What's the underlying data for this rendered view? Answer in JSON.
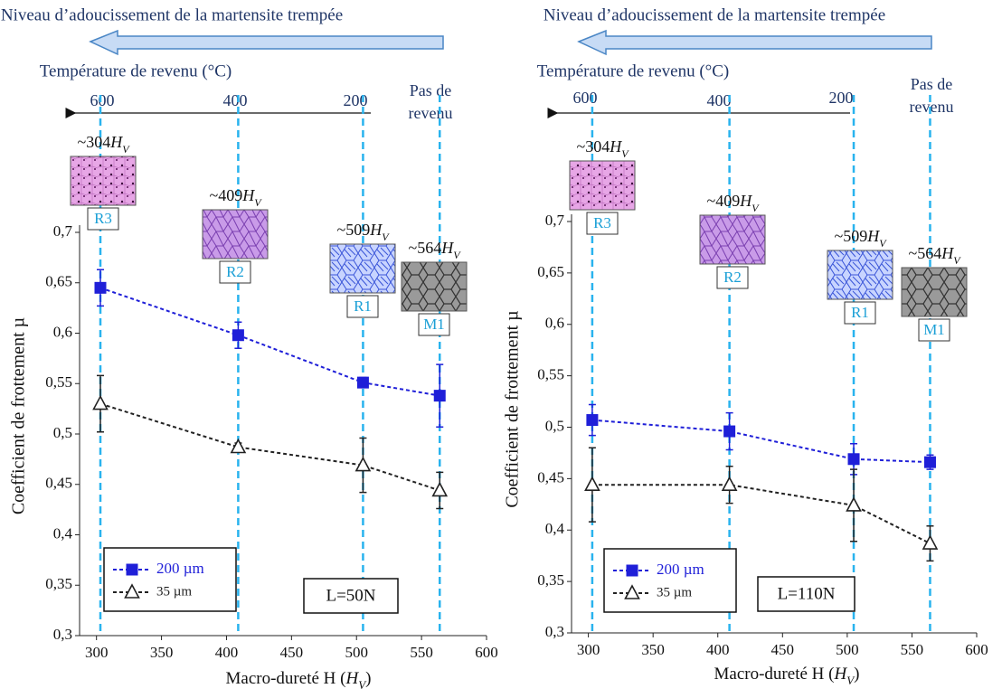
{
  "chart_data": [
    {
      "type": "line",
      "title": "Niveau d’adoucissement de la martensite trempée",
      "temperature_title": "Température de revenu (°C)",
      "temperature_labels": [
        "600",
        "400",
        "200"
      ],
      "no_tempering_label": [
        "Pas de",
        "revenu"
      ],
      "hardness_labels": [
        "~304",
        "~409",
        "~509",
        "~564"
      ],
      "hardness_symbol": "H",
      "hardness_sub": "V",
      "microstructure_labels": [
        "R3",
        "R2",
        "R1",
        "M1"
      ],
      "x_label": "Macro-dureté H (",
      "x_label_symbol": "H",
      "x_label_sub": "V",
      "x_label_close": ")",
      "y_label": "Coefficient de frottement µ",
      "load_label": "L=50N",
      "x": [
        303,
        409,
        505,
        564
      ],
      "series": [
        {
          "name": "200 µm",
          "color": "#1f1fd8",
          "marker": "square",
          "values": [
            0.645,
            0.598,
            0.551,
            0.538
          ],
          "errors": [
            0.018,
            0.013,
            0.005,
            0.031
          ]
        },
        {
          "name": "35 µm",
          "color": "#222222",
          "marker": "triangle",
          "values": [
            0.53,
            0.487,
            0.469,
            0.444
          ],
          "errors": [
            0.028,
            0.004,
            0.027,
            0.018
          ]
        }
      ],
      "xlim": [
        287,
        600
      ],
      "xticks": [
        300,
        350,
        400,
        450,
        500,
        550,
        600
      ],
      "ylim": [
        0.3,
        0.7
      ],
      "yticks": [
        {
          "value": 0.3,
          "label": "0,3"
        },
        {
          "value": 0.35,
          "label": "0,35"
        },
        {
          "value": 0.4,
          "label": "0,4"
        },
        {
          "value": 0.45,
          "label": "0,45"
        },
        {
          "value": 0.5,
          "label": "0,5"
        },
        {
          "value": 0.55,
          "label": "0,55"
        },
        {
          "value": 0.6,
          "label": "0,6"
        },
        {
          "value": 0.65,
          "label": "0,65"
        },
        {
          "value": 0.7,
          "label": "0,7"
        }
      ]
    },
    {
      "type": "line",
      "title": "Niveau d’adoucissement de la martensite trempée",
      "temperature_title": "Température de revenu (°C)",
      "temperature_labels": [
        "600",
        "400",
        "200"
      ],
      "no_tempering_label": [
        "Pas de",
        "revenu"
      ],
      "hardness_labels": [
        "~304",
        "~409",
        "~509",
        "~564"
      ],
      "hardness_symbol": "H",
      "hardness_sub": "V",
      "microstructure_labels": [
        "R3",
        "R2",
        "R1",
        "M1"
      ],
      "x_label": "Macro-dureté H (",
      "x_label_symbol": "H",
      "x_label_sub": "V",
      "x_label_close": ")",
      "y_label": "Coefficient de frottement µ",
      "load_label": "L=110N",
      "x": [
        303,
        409,
        505,
        564
      ],
      "series": [
        {
          "name": "200 µm",
          "color": "#1f1fd8",
          "marker": "square",
          "values": [
            0.507,
            0.496,
            0.469,
            0.466
          ],
          "errors": [
            0.015,
            0.018,
            0.015,
            0.007
          ]
        },
        {
          "name": "35 µm",
          "color": "#222222",
          "marker": "triangle",
          "values": [
            0.444,
            0.444,
            0.424,
            0.387
          ],
          "errors": [
            0.036,
            0.018,
            0.035,
            0.017
          ]
        }
      ],
      "xlim": [
        287,
        600
      ],
      "xticks": [
        300,
        350,
        400,
        450,
        500,
        550,
        600
      ],
      "ylim": [
        0.3,
        0.7
      ],
      "yticks": [
        {
          "value": 0.3,
          "label": "0,3"
        },
        {
          "value": 0.35,
          "label": "0,35"
        },
        {
          "value": 0.4,
          "label": "0,4"
        },
        {
          "value": 0.45,
          "label": "0,45"
        },
        {
          "value": 0.5,
          "label": "0,5"
        },
        {
          "value": 0.55,
          "label": "0,55"
        },
        {
          "value": 0.6,
          "label": "0,6"
        },
        {
          "value": 0.65,
          "label": "0,65"
        },
        {
          "value": 0.7,
          "label": "0,7"
        }
      ]
    }
  ]
}
